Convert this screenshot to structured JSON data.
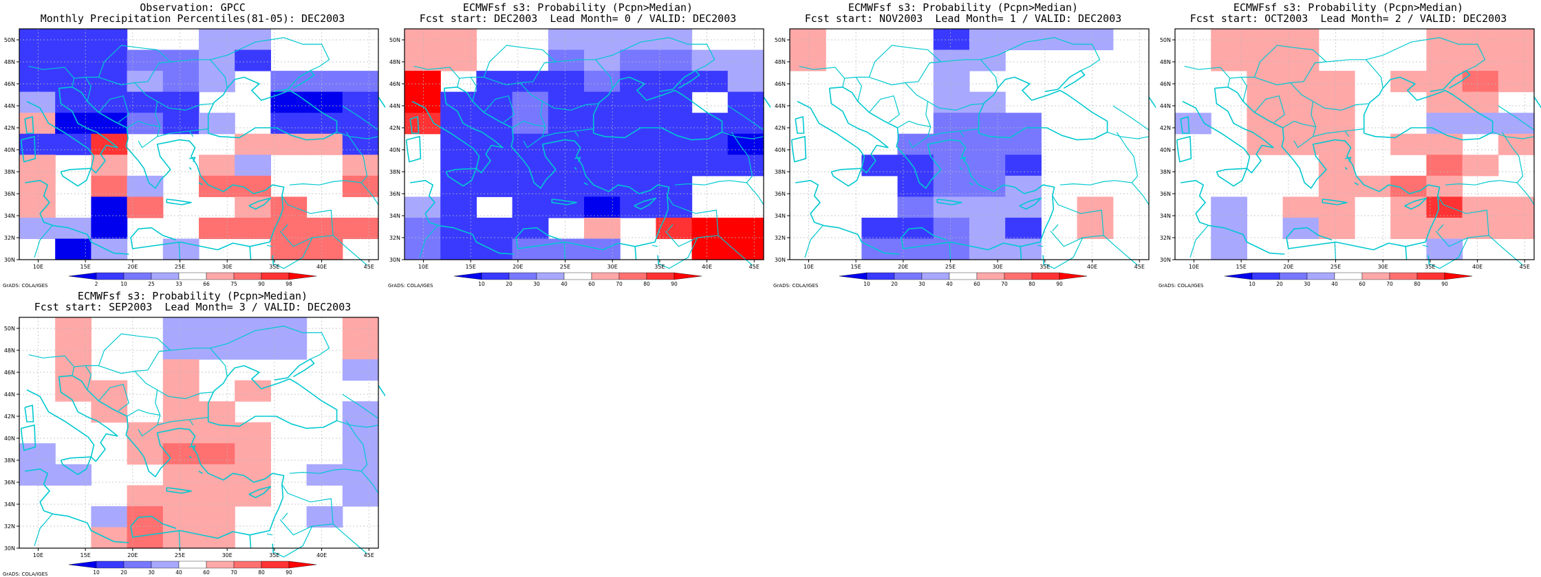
{
  "credit": "GrADS: COLA/IGES",
  "axes": {
    "lon_labels": [
      "10E",
      "15E",
      "20E",
      "25E",
      "30E",
      "35E",
      "40E",
      "45E"
    ],
    "lat_labels": [
      "30N",
      "32N",
      "34N",
      "36N",
      "38N",
      "40N",
      "42N",
      "44N",
      "46N",
      "48N",
      "50N"
    ]
  },
  "color_scales": {
    "obs": {
      "labels": [
        "2",
        "10",
        "25",
        "33",
        "66",
        "75",
        "90",
        "98"
      ],
      "colors": [
        "#0000ee",
        "#3a3aff",
        "#7878ff",
        "#a8a8ff",
        "#ffffff",
        "#ffa8a8",
        "#ff7070",
        "#ff3333",
        "#ff0000"
      ]
    },
    "prob": {
      "labels": [
        "10",
        "20",
        "30",
        "40",
        "60",
        "70",
        "80",
        "90"
      ],
      "colors": [
        "#0000ee",
        "#3a3aff",
        "#7878ff",
        "#a8a8ff",
        "#ffffff",
        "#ffa8a8",
        "#ff7070",
        "#ff3333",
        "#ff0000"
      ]
    }
  },
  "panels": [
    {
      "title1": "Observation: GPCC",
      "title2": "Monthly Precipitation Percentiles(81-05): DEC2003",
      "scale": "obs",
      "grid": [
        "1114433444",
        "1112231444",
        "1113234222",
        "3111144001",
        "5002134111",
        "1174445551",
        "5454453445",
        "5463466446",
        "5406445644",
        "3304466666",
        "4034344664"
      ]
    },
    {
      "title1": "ECMWFsf s3: Probability (Pcpn>Median)",
      "title2": "Fcst start: DEC2003  Lead Month= 0 / VALID: DEC2003",
      "scale": "prob",
      "grid": [
        "5544333344",
        "5544232233",
        "8411121113",
        "8112111141",
        "7112111111",
        "4111111110",
        "4111111111",
        "4111111144",
        "3141101144",
        "2111454788",
        "2112224488"
      ]
    },
    {
      "title1": "ECMWFsf s3: Probability (Pcpn>Median)",
      "title2": "Fcst start: NOV2003  Lead Month= 1 / VALID: DEC2003",
      "scale": "prob",
      "grid": [
        "5444133334",
        "5444334444",
        "4444344444",
        "4444334444",
        "4444222444",
        "4442222444",
        "4411221444",
        "4441223444",
        "4442333454",
        "4411231454",
        "4422233444"
      ]
    },
    {
      "title1": "ECMWFsf s3: Probability (Pcpn>Median)",
      "title2": "Fcst start: OCT2003  Lead Month= 2 / VALID: DEC2003",
      "scale": "prob",
      "grid": [
        "4555444555",
        "4555444555",
        "4455545565",
        "4455544554",
        "3455544333",
        "4455545545",
        "4444544654",
        "4444556544",
        "4345545755",
        "4343545555",
        "4344444344"
      ]
    },
    {
      "title1": "ECMWFsf s3: Probability (Pcpn>Median)",
      "title2": "Fcst start: SEP2003  Lead Month= 3 / VALID: DEC2003",
      "scale": "prob",
      "grid": [
        "4544333345",
        "4544333345",
        "4544544443",
        "4554545444",
        "4454554443",
        "4445555443",
        "3445665443",
        "3344555433",
        "4445555443",
        "4436554434",
        "4456554444"
      ]
    }
  ]
}
